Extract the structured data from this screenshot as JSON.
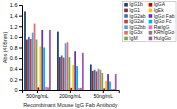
{
  "chart_data": {
    "type": "bar",
    "categories": [
      "500ng/mL",
      "200ng/mL",
      "50ng/mL"
    ],
    "series": [
      {
        "name": "IgG1b",
        "color": "#1F3F6E",
        "values": [
          1.48,
          1.1,
          0.48
        ]
      },
      {
        "name": "IgG1",
        "color": "#7F3030",
        "values": [
          0.95,
          0.62,
          0.36
        ]
      },
      {
        "name": "IgG2ab",
        "color": "#3A70B0",
        "values": [
          1.0,
          0.65,
          0.38
        ]
      },
      {
        "name": "IgG2al",
        "color": "#BF4040",
        "values": [
          0.96,
          0.61,
          0.35
        ]
      },
      {
        "name": "IgG2bb",
        "color": "#5B9BD5",
        "values": [
          1.08,
          0.88,
          0.4
        ]
      },
      {
        "name": "IgG3x",
        "color": "#E07070",
        "values": [
          1.25,
          0.9,
          0.38
        ]
      },
      {
        "name": "IgM",
        "color": "#70AD47",
        "values": [
          0.95,
          0.62,
          0.32
        ]
      },
      {
        "name": "IgGA",
        "color": "#C00000",
        "values": [
          0.05,
          0.04,
          0.03
        ]
      },
      {
        "name": "IgEk",
        "color": "#FFC000",
        "values": [
          0.82,
          0.47,
          0.17
        ]
      },
      {
        "name": "IgGo Fab",
        "color": "#7030A0",
        "values": [
          1.13,
          0.73,
          0.3
        ]
      },
      {
        "name": "IgGo Fc",
        "color": "#00B0F0",
        "values": [
          0.8,
          0.45,
          0.16
        ]
      },
      {
        "name": "RatIgG",
        "color": "#FF69B4",
        "values": [
          0.06,
          0.04,
          0.02
        ]
      },
      {
        "name": "KRhIgGo",
        "color": "#808080",
        "values": [
          0.05,
          0.04,
          0.02
        ]
      },
      {
        "name": "HuIgGo",
        "color": "#9B59B6",
        "values": [
          1.13,
          0.7,
          0.3
        ]
      }
    ],
    "xlabel": "Recombinant Mouse IgG Fab Antibody",
    "ylabel": "Abs (405nm)",
    "ylim": [
      0,
      1.6
    ],
    "yticks": [
      0,
      0.2,
      0.4,
      0.6,
      0.8,
      {
        "value": 1.0,
        "label": "1.0"
      },
      1.2,
      1.4,
      1.6
    ],
    "grid": false,
    "legend": "upper right"
  }
}
